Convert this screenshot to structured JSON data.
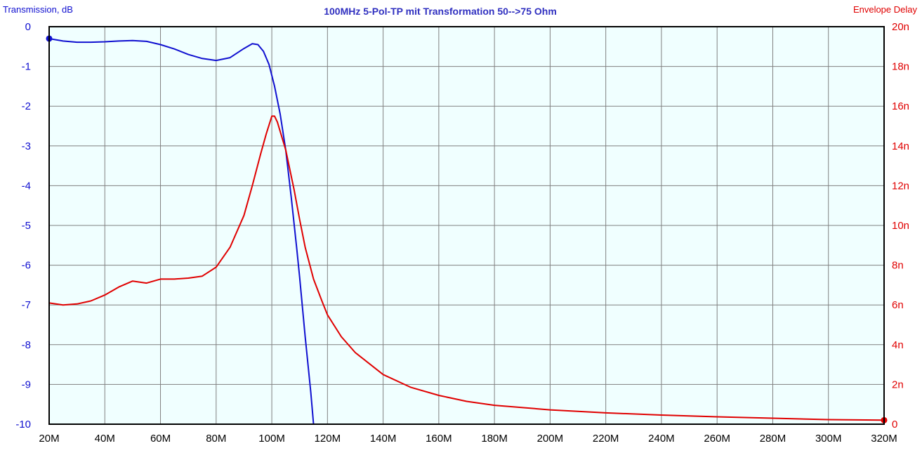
{
  "chart_data": {
    "type": "line",
    "title": "100MHz 5-Pol-TP mit Transformation 50-->75 Ohm",
    "xlabel": "",
    "ylabel": "Transmission, dB",
    "y2label": "Envelope Delay",
    "xlim": [
      20,
      320
    ],
    "ylim": [
      -10,
      0
    ],
    "y2lim": [
      0,
      20
    ],
    "x_unit": "MHz",
    "y2_unit": "ns",
    "grid": true,
    "x_ticks": [
      "20M",
      "40M",
      "60M",
      "80M",
      "100M",
      "120M",
      "140M",
      "160M",
      "180M",
      "200M",
      "220M",
      "240M",
      "260M",
      "280M",
      "300M",
      "320M"
    ],
    "y_ticks": [
      "0",
      "-1",
      "-2",
      "-3",
      "-4",
      "-5",
      "-6",
      "-7",
      "-8",
      "-9",
      "-10"
    ],
    "y2_ticks": [
      "20n",
      "18n",
      "16n",
      "14n",
      "12n",
      "10n",
      "8n",
      "6n",
      "4n",
      "2n",
      "0"
    ],
    "colors": {
      "transmission": "#1010d0",
      "delay": "#e00000",
      "plot_bg": "#f0ffff",
      "grid": "#808080"
    },
    "series": [
      {
        "axis": "left",
        "x": [
          20,
          25,
          30,
          35,
          40,
          45,
          50,
          55,
          60,
          65,
          70,
          75,
          80,
          85,
          90,
          93,
          95,
          97,
          99,
          101,
          103,
          105,
          107,
          109,
          110,
          112,
          114,
          115,
          120,
          140,
          160,
          180,
          200,
          220,
          240,
          260,
          280,
          300,
          320
        ],
        "values": [
          -0.3,
          -0.36,
          -0.39,
          -0.39,
          -0.38,
          -0.36,
          -0.35,
          -0.37,
          -0.45,
          -0.56,
          -0.7,
          -0.8,
          -0.85,
          -0.78,
          -0.55,
          -0.43,
          -0.45,
          -0.62,
          -0.95,
          -1.5,
          -2.2,
          -3.1,
          -4.3,
          -5.6,
          -6.3,
          -7.8,
          -9.2,
          -10,
          -10,
          -10,
          -10,
          -10,
          -10,
          -10,
          -10,
          -10,
          -10,
          -10,
          -10
        ]
      },
      {
        "axis": "right",
        "x": [
          20,
          25,
          30,
          35,
          40,
          45,
          50,
          55,
          60,
          65,
          70,
          75,
          80,
          85,
          90,
          93,
          96,
          98,
          100,
          101,
          102,
          105,
          108,
          110,
          112,
          115,
          118,
          120,
          125,
          130,
          140,
          150,
          160,
          170,
          180,
          200,
          220,
          240,
          260,
          280,
          300,
          320
        ],
        "values": [
          6.1,
          6.0,
          6.05,
          6.2,
          6.5,
          6.9,
          7.2,
          7.1,
          7.3,
          7.3,
          7.35,
          7.45,
          7.9,
          8.9,
          10.5,
          12.0,
          13.6,
          14.6,
          15.5,
          15.5,
          15.2,
          13.8,
          11.8,
          10.3,
          8.9,
          7.3,
          6.2,
          5.5,
          4.4,
          3.6,
          2.5,
          1.85,
          1.45,
          1.15,
          0.95,
          0.72,
          0.57,
          0.46,
          0.37,
          0.3,
          0.23,
          0.2
        ]
      }
    ]
  }
}
